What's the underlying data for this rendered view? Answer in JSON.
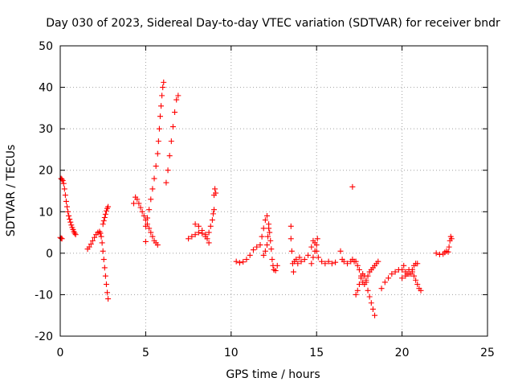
{
  "chart_data": {
    "type": "scatter",
    "title": "Day 030 of 2023, Sidereal Day-to-day VTEC variation (SDTVAR) for receiver bndr",
    "xlabel": "GPS time / hours",
    "ylabel": "SDTVAR / TECUs",
    "xlim": [
      0,
      25
    ],
    "ylim": [
      -20,
      50
    ],
    "xticks": [
      0,
      5,
      10,
      15,
      20,
      25
    ],
    "yticks": [
      -20,
      -10,
      0,
      10,
      20,
      30,
      40,
      50
    ],
    "xtick_labels": [
      "0",
      "5",
      "10",
      "15",
      "20",
      "25"
    ],
    "ytick_labels": [
      "-20",
      "-10",
      "0",
      "10",
      "20",
      "30",
      "40",
      "50"
    ],
    "grid": true,
    "legend": "none",
    "marker": "+",
    "color": "#ff0000",
    "series": [
      {
        "points": [
          [
            0.0,
            3.8
          ],
          [
            0.05,
            3.6
          ],
          [
            0.1,
            3.5
          ],
          [
            0.05,
            18.0
          ],
          [
            0.1,
            17.8
          ],
          [
            0.15,
            17.5
          ],
          [
            0.2,
            16.8
          ],
          [
            0.25,
            15.5
          ],
          [
            0.3,
            14.0
          ],
          [
            0.35,
            12.5
          ],
          [
            0.4,
            11.2
          ],
          [
            0.45,
            10.0
          ],
          [
            0.5,
            9.0
          ],
          [
            0.55,
            8.2
          ],
          [
            0.6,
            7.5
          ],
          [
            0.65,
            6.8
          ],
          [
            0.7,
            6.2
          ],
          [
            0.75,
            5.7
          ],
          [
            0.8,
            5.2
          ],
          [
            0.85,
            4.8
          ],
          [
            0.9,
            4.5
          ],
          [
            1.6,
            1.0
          ],
          [
            1.7,
            1.5
          ],
          [
            1.8,
            2.2
          ],
          [
            1.9,
            3.0
          ],
          [
            2.0,
            3.8
          ],
          [
            2.1,
            4.5
          ],
          [
            2.2,
            5.0
          ],
          [
            2.3,
            5.2
          ],
          [
            2.35,
            4.8
          ],
          [
            2.4,
            4.0
          ],
          [
            2.45,
            2.5
          ],
          [
            2.5,
            0.5
          ],
          [
            2.55,
            -1.5
          ],
          [
            2.6,
            -3.5
          ],
          [
            2.65,
            -5.5
          ],
          [
            2.7,
            -7.5
          ],
          [
            2.75,
            -9.5
          ],
          [
            2.8,
            -11.0
          ],
          [
            2.5,
            7.0
          ],
          [
            2.55,
            7.8
          ],
          [
            2.6,
            8.6
          ],
          [
            2.65,
            9.4
          ],
          [
            2.7,
            10.2
          ],
          [
            2.75,
            10.8
          ],
          [
            2.8,
            11.2
          ],
          [
            4.3,
            12.0
          ],
          [
            4.4,
            13.5
          ],
          [
            4.5,
            13.0
          ],
          [
            4.6,
            12.0
          ],
          [
            4.7,
            11.0
          ],
          [
            4.8,
            10.0
          ],
          [
            4.9,
            9.0
          ],
          [
            5.0,
            8.0
          ],
          [
            5.1,
            7.0
          ],
          [
            5.2,
            6.0
          ],
          [
            5.3,
            5.0
          ],
          [
            5.4,
            4.0
          ],
          [
            5.5,
            3.0
          ],
          [
            5.6,
            2.5
          ],
          [
            5.7,
            2.0
          ],
          [
            5.0,
            2.8
          ],
          [
            5.0,
            6.5
          ],
          [
            5.1,
            8.5
          ],
          [
            5.2,
            10.5
          ],
          [
            5.3,
            13.0
          ],
          [
            5.4,
            15.5
          ],
          [
            5.5,
            18.0
          ],
          [
            5.6,
            21.0
          ],
          [
            5.7,
            24.0
          ],
          [
            5.75,
            27.0
          ],
          [
            5.8,
            30.0
          ],
          [
            5.85,
            33.0
          ],
          [
            5.9,
            35.5
          ],
          [
            5.95,
            38.0
          ],
          [
            6.0,
            40.0
          ],
          [
            6.05,
            41.2
          ],
          [
            6.2,
            17.0
          ],
          [
            6.3,
            20.0
          ],
          [
            6.4,
            23.5
          ],
          [
            6.5,
            27.0
          ],
          [
            6.6,
            30.5
          ],
          [
            6.7,
            34.0
          ],
          [
            6.8,
            37.0
          ],
          [
            6.9,
            38.0
          ],
          [
            7.5,
            3.5
          ],
          [
            7.7,
            4.0
          ],
          [
            7.9,
            4.5
          ],
          [
            8.1,
            5.0
          ],
          [
            8.3,
            4.8
          ],
          [
            8.5,
            4.0
          ],
          [
            8.7,
            5.0
          ],
          [
            8.8,
            6.5
          ],
          [
            8.9,
            8.0
          ],
          [
            8.95,
            9.5
          ],
          [
            9.0,
            10.5
          ],
          [
            7.9,
            7.0
          ],
          [
            8.1,
            6.5
          ],
          [
            8.3,
            5.5
          ],
          [
            8.5,
            4.5
          ],
          [
            8.6,
            3.5
          ],
          [
            8.7,
            2.5
          ],
          [
            9.0,
            14.0
          ],
          [
            9.05,
            15.5
          ],
          [
            9.1,
            14.5
          ],
          [
            10.3,
            -2.0
          ],
          [
            10.5,
            -2.3
          ],
          [
            10.7,
            -2.1
          ],
          [
            10.9,
            -1.5
          ],
          [
            11.1,
            -0.5
          ],
          [
            11.3,
            0.8
          ],
          [
            11.5,
            1.5
          ],
          [
            11.7,
            2.0
          ],
          [
            11.8,
            4.0
          ],
          [
            11.9,
            6.0
          ],
          [
            12.0,
            8.0
          ],
          [
            12.1,
            9.0
          ],
          [
            12.2,
            7.0
          ],
          [
            12.25,
            5.0
          ],
          [
            12.3,
            3.0
          ],
          [
            12.35,
            1.0
          ],
          [
            12.4,
            -1.5
          ],
          [
            12.45,
            -3.0
          ],
          [
            12.5,
            -4.0
          ],
          [
            12.6,
            -4.2
          ],
          [
            12.7,
            -3.0
          ],
          [
            11.9,
            -0.5
          ],
          [
            12.0,
            0.5
          ],
          [
            12.1,
            2.0
          ],
          [
            12.15,
            4.0
          ],
          [
            12.2,
            6.0
          ],
          [
            13.5,
            6.5
          ],
          [
            13.5,
            3.5
          ],
          [
            13.55,
            0.5
          ],
          [
            13.6,
            -2.5
          ],
          [
            13.65,
            -4.5
          ],
          [
            13.7,
            -2.0
          ],
          [
            13.8,
            -1.5
          ],
          [
            13.9,
            -2.5
          ],
          [
            14.0,
            -1.0
          ],
          [
            14.1,
            -2.0
          ],
          [
            14.3,
            -1.5
          ],
          [
            14.5,
            -0.5
          ],
          [
            14.7,
            1.5
          ],
          [
            14.8,
            3.0
          ],
          [
            14.9,
            2.5
          ],
          [
            15.0,
            0.5
          ],
          [
            15.1,
            -1.0
          ],
          [
            15.3,
            -2.0
          ],
          [
            15.5,
            -2.5
          ],
          [
            15.7,
            -2.0
          ],
          [
            15.9,
            -2.5
          ],
          [
            16.1,
            -2.2
          ],
          [
            14.7,
            -2.5
          ],
          [
            14.8,
            -1.0
          ],
          [
            14.9,
            0.5
          ],
          [
            15.0,
            2.0
          ],
          [
            15.05,
            3.5
          ],
          [
            16.4,
            0.5
          ],
          [
            16.5,
            -1.5
          ],
          [
            16.6,
            -2.0
          ],
          [
            16.8,
            -2.5
          ],
          [
            17.0,
            -2.0
          ],
          [
            17.1,
            -1.5
          ],
          [
            17.2,
            -2.0
          ],
          [
            17.1,
            16.0
          ],
          [
            17.3,
            -10.0
          ],
          [
            17.4,
            -9.0
          ],
          [
            17.5,
            -7.5
          ],
          [
            17.6,
            -6.0
          ],
          [
            17.7,
            -5.0
          ],
          [
            17.8,
            -5.5
          ],
          [
            17.9,
            -7.0
          ],
          [
            18.0,
            -9.0
          ],
          [
            18.1,
            -10.5
          ],
          [
            18.2,
            -12.0
          ],
          [
            18.3,
            -13.5
          ],
          [
            18.4,
            -15.0
          ],
          [
            17.3,
            -2.0
          ],
          [
            17.4,
            -3.0
          ],
          [
            17.5,
            -4.0
          ],
          [
            17.6,
            -5.5
          ],
          [
            17.7,
            -7.0
          ],
          [
            17.8,
            -7.5
          ],
          [
            17.9,
            -6.5
          ],
          [
            18.0,
            -5.5
          ],
          [
            18.1,
            -4.5
          ],
          [
            18.2,
            -4.0
          ],
          [
            18.3,
            -3.5
          ],
          [
            18.4,
            -3.0
          ],
          [
            18.5,
            -2.5
          ],
          [
            18.6,
            -2.0
          ],
          [
            18.8,
            -8.5
          ],
          [
            19.0,
            -7.0
          ],
          [
            19.2,
            -6.0
          ],
          [
            19.4,
            -5.0
          ],
          [
            19.6,
            -4.5
          ],
          [
            19.8,
            -4.0
          ],
          [
            20.0,
            -4.0
          ],
          [
            20.1,
            -3.0
          ],
          [
            20.2,
            -4.5
          ],
          [
            20.3,
            -5.0
          ],
          [
            20.4,
            -4.0
          ],
          [
            20.5,
            -5.0
          ],
          [
            20.6,
            -4.5
          ],
          [
            20.7,
            -5.5
          ],
          [
            20.8,
            -6.5
          ],
          [
            20.9,
            -7.5
          ],
          [
            21.0,
            -8.5
          ],
          [
            21.1,
            -9.0
          ],
          [
            20.0,
            -6.0
          ],
          [
            20.2,
            -5.5
          ],
          [
            20.4,
            -5.0
          ],
          [
            20.6,
            -4.0
          ],
          [
            20.7,
            -3.0
          ],
          [
            20.8,
            -2.5
          ],
          [
            20.9,
            -2.5
          ],
          [
            22.0,
            0.0
          ],
          [
            22.2,
            -0.3
          ],
          [
            22.4,
            -0.2
          ],
          [
            22.5,
            0.2
          ],
          [
            22.6,
            0.5
          ],
          [
            22.7,
            0.3
          ],
          [
            22.75,
            1.5
          ],
          [
            22.8,
            3.0
          ],
          [
            22.85,
            4.0
          ],
          [
            22.9,
            3.5
          ]
        ]
      }
    ]
  }
}
